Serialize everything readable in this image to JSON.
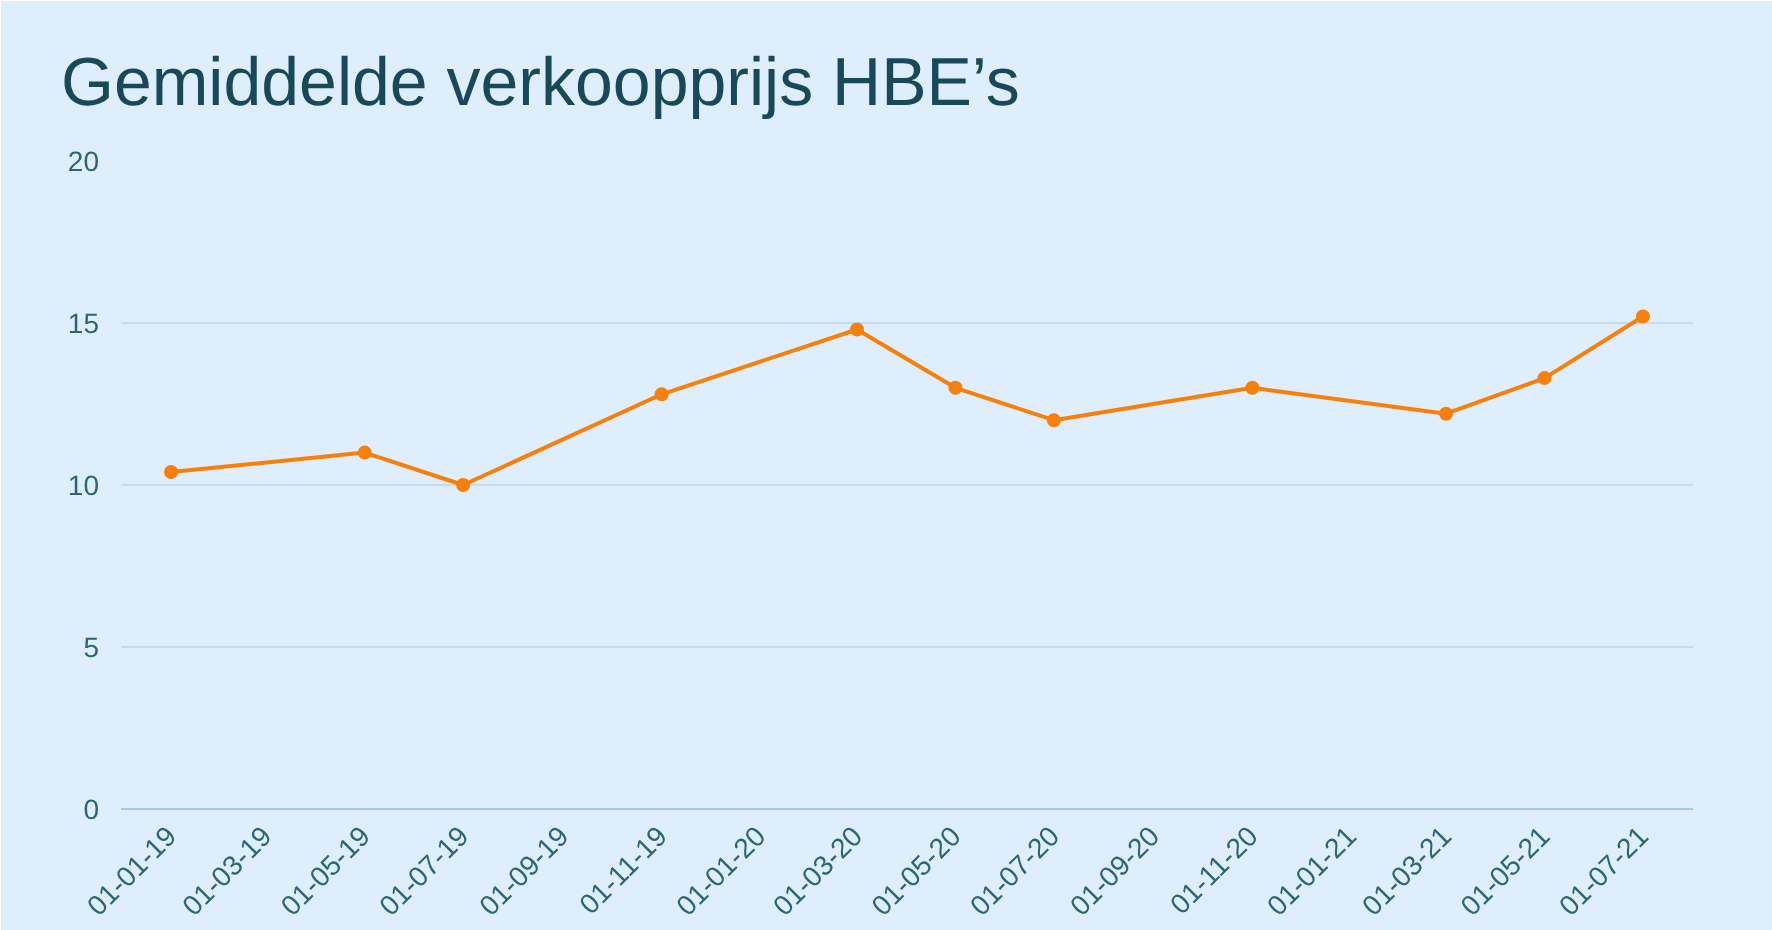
{
  "chart_data": {
    "type": "line",
    "title": "Gemiddelde verkoopprijs HBE’s",
    "x": [
      "2019-01-01",
      "2019-05-01",
      "2019-07-01",
      "2019-11-01",
      "2020-03-01",
      "2020-05-01",
      "2020-07-01",
      "2020-11-01",
      "2021-03-01",
      "2021-05-01",
      "2021-07-01"
    ],
    "series": [
      {
        "color": "#f77f0a",
        "values": [
          10.4,
          11,
          10,
          12.8,
          14.8,
          13,
          12,
          13,
          12.2,
          13.3,
          15.2
        ]
      }
    ],
    "xlim": [
      "2018-12-01",
      "2021-08-01"
    ],
    "xticks": [
      {
        "value": "2019-01-01",
        "label": "01-01-19"
      },
      {
        "value": "2019-03-01",
        "label": "01-03-19"
      },
      {
        "value": "2019-05-01",
        "label": "01-05-19"
      },
      {
        "value": "2019-07-01",
        "label": "01-07-19"
      },
      {
        "value": "2019-09-01",
        "label": "01-09-19"
      },
      {
        "value": "2019-11-01",
        "label": "01-11-19"
      },
      {
        "value": "2020-01-01",
        "label": "01-01-20"
      },
      {
        "value": "2020-03-01",
        "label": "01-03-20"
      },
      {
        "value": "2020-05-01",
        "label": "01-05-20"
      },
      {
        "value": "2020-07-01",
        "label": "01-07-20"
      },
      {
        "value": "2020-09-01",
        "label": "01-09-20"
      },
      {
        "value": "2020-11-01",
        "label": "01-11-20"
      },
      {
        "value": "2021-01-01",
        "label": "01-01-21"
      },
      {
        "value": "2021-03-01",
        "label": "01-03-21"
      },
      {
        "value": "2021-05-01",
        "label": "01-05-21"
      },
      {
        "value": "2021-07-01",
        "label": "01-07-21"
      }
    ],
    "ylim": [
      0,
      20
    ],
    "yticks": [
      0,
      5,
      10,
      15,
      20
    ],
    "grid": "y",
    "marker": "circle",
    "line_style": "solid"
  }
}
